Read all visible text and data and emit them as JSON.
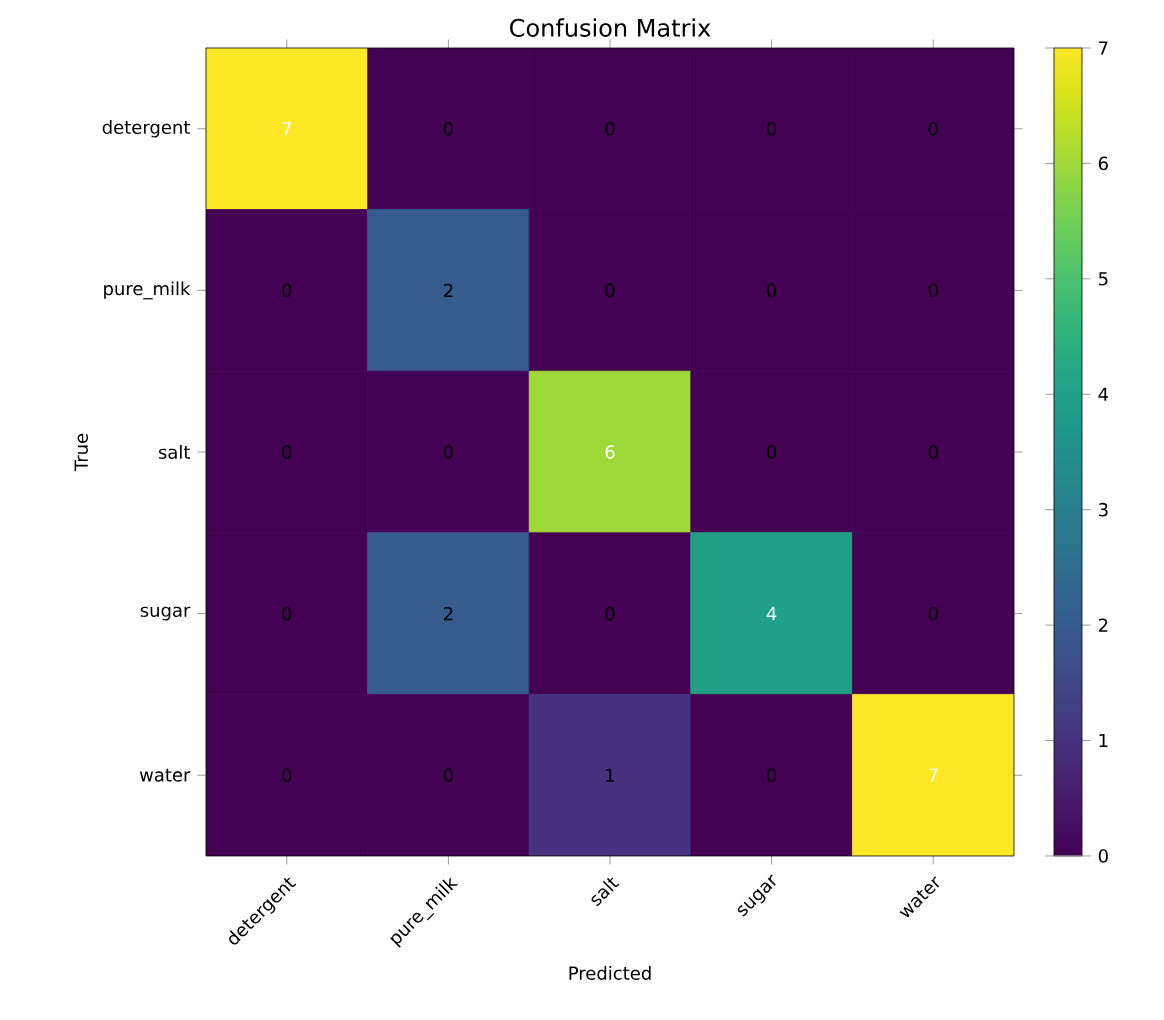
{
  "chart_data": {
    "type": "heatmap",
    "title": "Confusion Matrix",
    "xlabel": "Predicted",
    "ylabel": "True",
    "categories": [
      "detergent",
      "pure_milk",
      "salt",
      "sugar",
      "water"
    ],
    "y_categories": [
      "detergent",
      "pure_milk",
      "salt",
      "sugar",
      "water"
    ],
    "cells": [
      [
        7,
        0,
        0,
        0,
        0
      ],
      [
        0,
        2,
        0,
        0,
        0
      ],
      [
        0,
        0,
        6,
        0,
        0
      ],
      [
        0,
        2,
        0,
        4,
        0
      ],
      [
        0,
        0,
        1,
        0,
        7
      ]
    ],
    "clim": [
      0,
      7
    ],
    "cticks": [
      0,
      1,
      2,
      3,
      4,
      5,
      6,
      7
    ],
    "data_labels": true
  }
}
